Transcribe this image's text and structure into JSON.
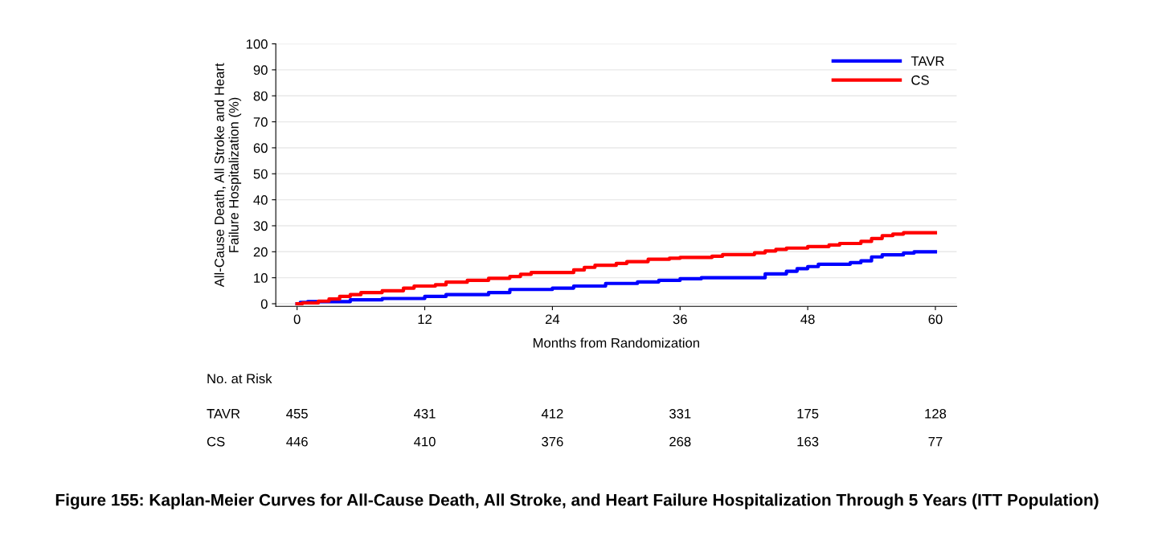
{
  "chart_data": {
    "type": "step",
    "title": "Figure 155: Kaplan-Meier Curves for All-Cause Death, All Stroke, and Heart Failure Hospitalization Through 5 Years (ITT Population)",
    "xlabel": "Months from Randomization",
    "ylabel": "All-Cause Death, All Stroke and Heart\nFailure Hospitalization (%)",
    "xlim": [
      -2,
      62
    ],
    "ylim": [
      -1,
      100
    ],
    "xticks": [
      0,
      12,
      24,
      36,
      48,
      60
    ],
    "yticks": [
      0,
      10,
      20,
      30,
      40,
      50,
      60,
      70,
      80,
      90,
      100
    ],
    "grid": "y",
    "legend": "top right",
    "series": [
      {
        "name": "TAVR",
        "color": "#0000ff",
        "x": [
          0,
          0.3,
          1,
          5,
          8,
          12,
          14,
          18,
          20,
          24,
          26,
          29,
          32,
          34,
          36,
          38,
          42,
          44,
          46,
          47,
          48,
          49,
          52,
          53,
          54,
          55,
          57,
          58,
          60
        ],
        "values": [
          0,
          0.5,
          0.8,
          1.5,
          2,
          2.8,
          3.5,
          4.3,
          5.5,
          6,
          6.8,
          7.8,
          8.4,
          9,
          9.6,
          10,
          10,
          11.5,
          12.5,
          13.5,
          14.3,
          15.2,
          15.8,
          16.5,
          18,
          18.8,
          19.5,
          20,
          20
        ]
      },
      {
        "name": "CS",
        "color": "#ff0000",
        "x": [
          0,
          0.5,
          2,
          3,
          4,
          5,
          6,
          8,
          10,
          11,
          13,
          14,
          16,
          18,
          20,
          21,
          22,
          26,
          27,
          28,
          30,
          31,
          33,
          35,
          36,
          39,
          40,
          43,
          44,
          45,
          46,
          48,
          50,
          51,
          53,
          54,
          55,
          56,
          57,
          60
        ],
        "values": [
          0,
          0.3,
          1,
          1.8,
          2.8,
          3.5,
          4.3,
          5,
          6,
          6.8,
          7.3,
          8.3,
          9,
          9.8,
          10.5,
          11.3,
          12,
          13,
          14,
          14.8,
          15.5,
          16.2,
          17.1,
          17.5,
          17.8,
          18.3,
          18.9,
          19.6,
          20.3,
          20.9,
          21.4,
          22,
          22.6,
          23.2,
          24,
          25.1,
          26.2,
          26.8,
          27.3,
          27.3
        ]
      }
    ],
    "annotations": [
      "No. at Risk",
      "TAVR",
      "455",
      "431",
      "412",
      "331",
      "175",
      "128",
      "CS",
      "446",
      "410",
      "376",
      "268",
      "163",
      "77"
    ]
  }
}
